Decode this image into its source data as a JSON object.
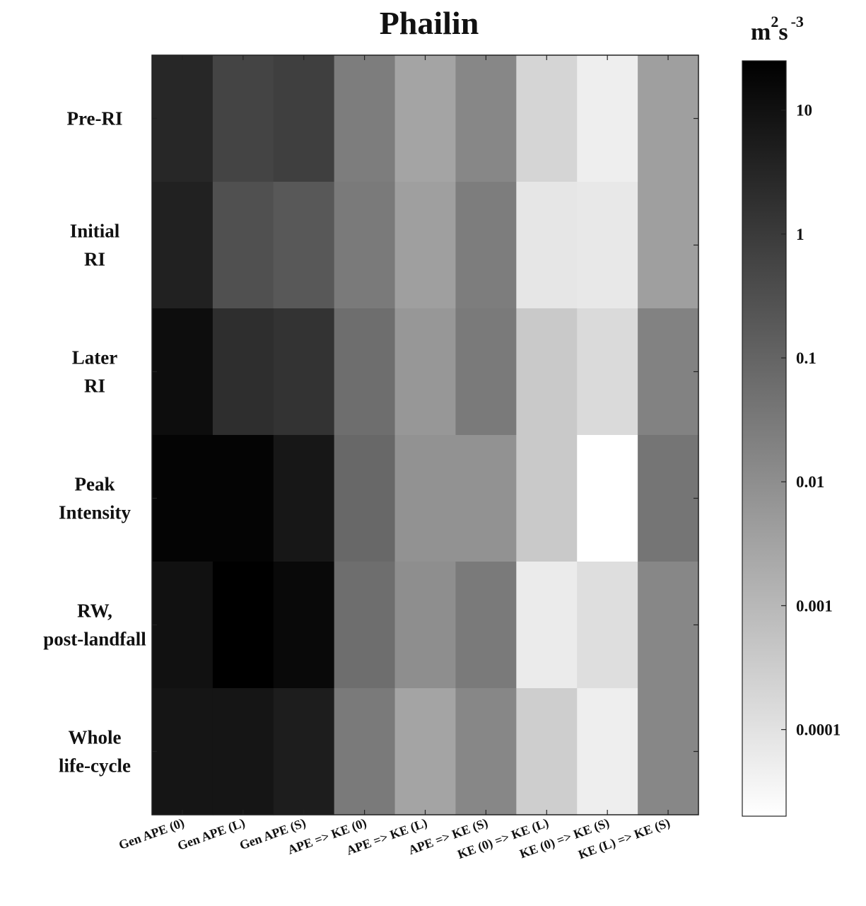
{
  "chart_data": {
    "type": "heatmap",
    "title": "Phailin",
    "colorbar_unit": {
      "base": "m",
      "sup1": "2",
      "mid": "s",
      "sup2": "-3"
    },
    "colormap": "gray (black = high, white = low)",
    "color_scale": "log",
    "clim": [
      2e-05,
      25
    ],
    "colorbar_ticks": [
      {
        "value": 10,
        "label": "10"
      },
      {
        "value": 1,
        "label": "1"
      },
      {
        "value": 0.1,
        "label": "0.1"
      },
      {
        "value": 0.01,
        "label": "0.01"
      },
      {
        "value": 0.001,
        "label": "0.001"
      },
      {
        "value": 0.0001,
        "label": "0.0001"
      }
    ],
    "columns": [
      "Gen APE (0)",
      "Gen APE (L)",
      "Gen APE (S)",
      "APE => KE (0)",
      "APE => KE (L)",
      "APE => KE (S)",
      "KE (0) => KE (L)",
      "KE (0) => KE (S)",
      "KE (L) => KE (S)"
    ],
    "rows": [
      {
        "label": [
          "Pre-RI"
        ]
      },
      {
        "label": [
          "Initial",
          "RI"
        ]
      },
      {
        "label": [
          "Later",
          "RI"
        ]
      },
      {
        "label": [
          "Peak",
          "Intensity"
        ]
      },
      {
        "label": [
          "RW,",
          "post-landfall"
        ]
      },
      {
        "label": [
          "Whole",
          "life-cycle"
        ]
      }
    ],
    "values": [
      [
        3,
        0.6,
        0.8,
        0.025,
        0.003,
        0.015,
        0.0002,
        5e-05,
        0.004
      ],
      [
        4,
        0.3,
        0.2,
        0.03,
        0.004,
        0.025,
        8e-05,
        7e-05,
        0.004
      ],
      [
        12,
        2,
        1.5,
        0.06,
        0.006,
        0.03,
        0.0004,
        0.00015,
        0.02
      ],
      [
        20,
        20,
        7,
        0.08,
        0.008,
        0.008,
        0.0004,
        2e-05,
        0.04
      ],
      [
        10,
        25,
        15,
        0.06,
        0.01,
        0.03,
        6e-05,
        0.00012,
        0.015
      ],
      [
        8,
        8,
        5,
        0.03,
        0.003,
        0.015,
        0.0003,
        5e-05,
        0.015
      ]
    ]
  }
}
